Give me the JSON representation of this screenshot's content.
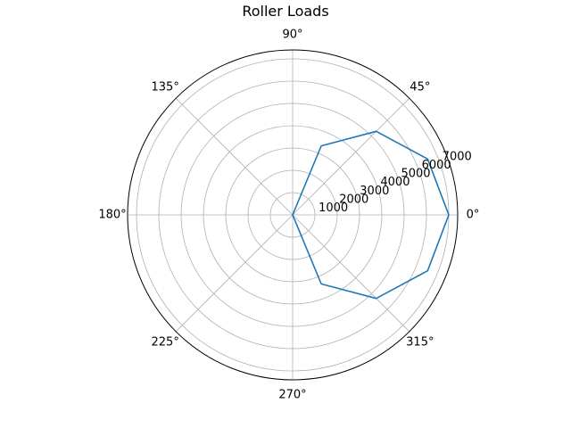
{
  "chart_data": {
    "type": "line",
    "projection": "polar",
    "title": "Roller Loads",
    "theta_tick_labels": [
      "0°",
      "45°",
      "90°",
      "135°",
      "180°",
      "225°",
      "270°",
      "315°"
    ],
    "theta_ticks_deg": [
      0,
      45,
      90,
      135,
      180,
      225,
      270,
      315
    ],
    "r_tick_labels": [
      "1000",
      "2000",
      "3000",
      "4000",
      "5000",
      "6000",
      "7000"
    ],
    "r_ticks": [
      1000,
      2000,
      3000,
      4000,
      5000,
      6000,
      7000
    ],
    "rlim": [
      0,
      7400
    ],
    "grid": true,
    "series": [
      {
        "color": "#1f77b4",
        "theta_deg": [
          0,
          22.5,
          45,
          67.5,
          90,
          112.5,
          135,
          157.5,
          180,
          202.5,
          225,
          247.5,
          270,
          292.5,
          315,
          337.5,
          360
        ],
        "r": [
          7000,
          6550,
          5300,
          3350,
          0,
          0,
          0,
          0,
          0,
          0,
          0,
          0,
          0,
          3350,
          5300,
          6550,
          7000
        ]
      }
    ]
  }
}
